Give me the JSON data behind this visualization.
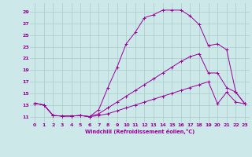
{
  "xlabel": "Windchill (Refroidissement éolien,°C)",
  "bg_color": "#cce8e8",
  "line_color": "#990099",
  "grid_color": "#aacccc",
  "xlim": [
    -0.5,
    23.5
  ],
  "ylim": [
    10.0,
    30.5
  ],
  "yticks": [
    11,
    13,
    15,
    17,
    19,
    21,
    23,
    25,
    27,
    29
  ],
  "xticks": [
    0,
    1,
    2,
    3,
    4,
    5,
    6,
    7,
    8,
    9,
    10,
    11,
    12,
    13,
    14,
    15,
    16,
    17,
    18,
    19,
    20,
    21,
    22,
    23
  ],
  "line1_x": [
    0,
    1,
    2,
    3,
    4,
    5,
    6,
    7,
    8,
    9,
    10,
    11,
    12,
    13,
    14,
    15,
    16,
    17,
    18,
    19,
    20,
    21,
    22,
    23
  ],
  "line1_y": [
    13.3,
    13.0,
    11.2,
    11.1,
    11.1,
    11.2,
    11.0,
    12.2,
    16.0,
    19.5,
    23.5,
    25.5,
    28.0,
    28.5,
    29.3,
    29.3,
    29.3,
    28.3,
    26.8,
    23.2,
    23.5,
    22.5,
    15.2,
    13.2
  ],
  "line2_x": [
    0,
    1,
    2,
    3,
    4,
    5,
    6,
    7,
    8,
    9,
    10,
    11,
    12,
    13,
    14,
    15,
    16,
    17,
    18,
    19,
    20,
    21,
    22,
    23
  ],
  "line2_y": [
    13.3,
    13.0,
    11.2,
    11.1,
    11.1,
    11.2,
    11.0,
    11.5,
    12.5,
    13.5,
    14.5,
    15.5,
    16.5,
    17.5,
    18.5,
    19.5,
    20.5,
    21.3,
    21.8,
    18.5,
    18.5,
    16.0,
    15.2,
    13.2
  ],
  "line3_x": [
    0,
    1,
    2,
    3,
    4,
    5,
    6,
    7,
    8,
    9,
    10,
    11,
    12,
    13,
    14,
    15,
    16,
    17,
    18,
    19,
    20,
    21,
    22,
    23
  ],
  "line3_y": [
    13.3,
    13.0,
    11.2,
    11.1,
    11.1,
    11.2,
    11.0,
    11.2,
    11.5,
    12.0,
    12.5,
    13.0,
    13.5,
    14.0,
    14.5,
    15.0,
    15.5,
    16.0,
    16.5,
    17.0,
    13.2,
    15.2,
    13.5,
    13.2
  ]
}
